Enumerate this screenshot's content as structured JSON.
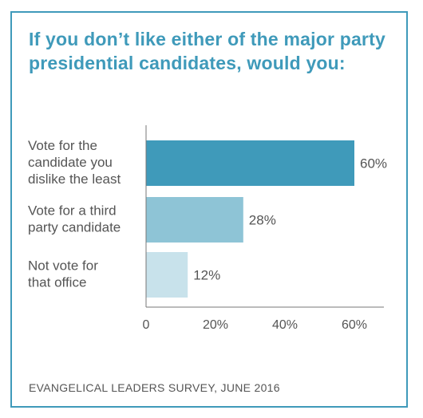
{
  "title": "If you don’t like either of the major party presidential candidates, would you:",
  "source": "EVANGELICAL LEADERS SURVEY, JUNE 2016",
  "chart_data": {
    "type": "bar",
    "orientation": "horizontal",
    "title": "If you don’t like either of the major party presidential candidates, would you:",
    "categories": [
      [
        "Vote for the",
        "candidate you",
        "dislike the least"
      ],
      [
        "Vote for a third",
        "party candidate"
      ],
      [
        "Not vote for",
        "that office"
      ]
    ],
    "values": [
      60,
      28,
      12
    ],
    "value_labels": [
      "60%",
      "28%",
      "12%"
    ],
    "colors": [
      "#3f9aba",
      "#8ec4d6",
      "#c8e2eb"
    ],
    "xlim": [
      0,
      70
    ],
    "xticks": [
      0,
      20,
      40,
      60
    ],
    "xtick_labels": [
      "0",
      "20%",
      "40%",
      "60%"
    ],
    "grid": false,
    "legend": "none"
  }
}
